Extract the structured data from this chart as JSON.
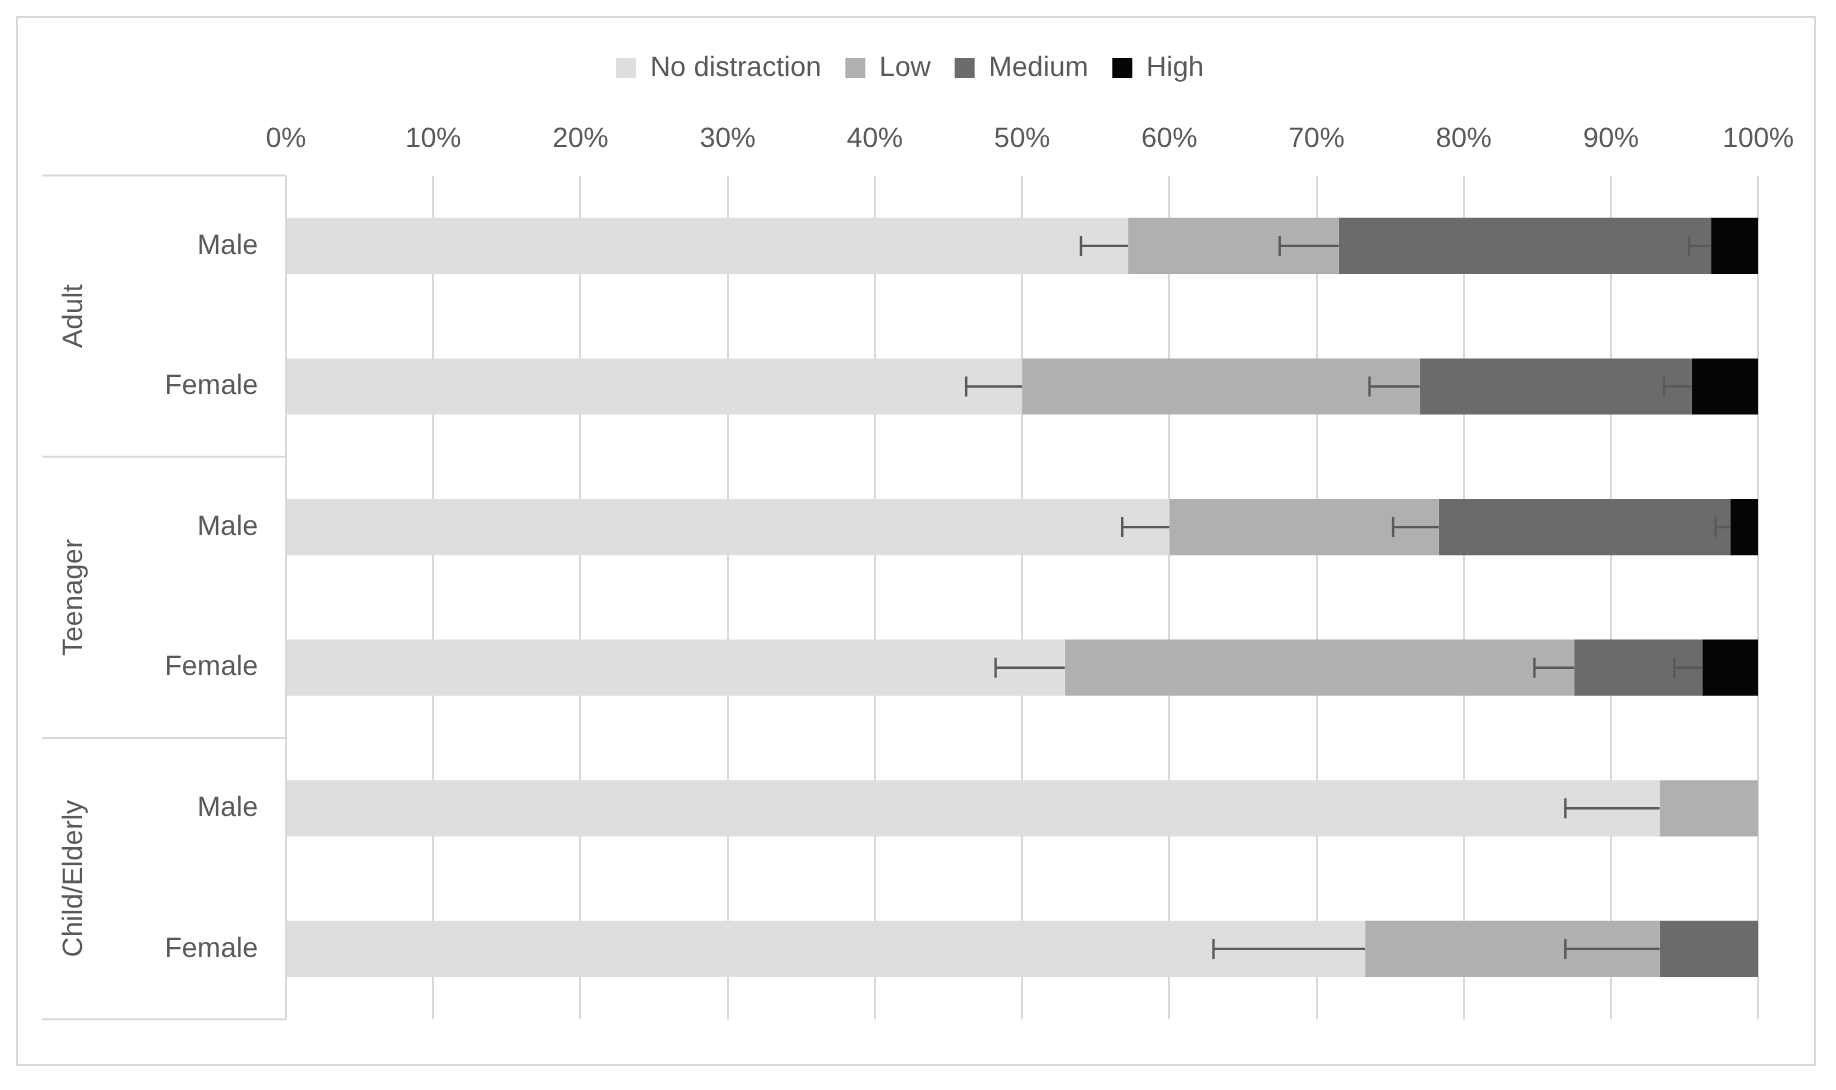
{
  "chart_data": {
    "type": "bar",
    "orientation": "horizontal",
    "stacked": true,
    "legend": "top",
    "grid": "x",
    "categories": [
      "Male",
      "Female",
      "Male",
      "Female",
      "Male",
      "Female"
    ],
    "annotations": [
      "Adult",
      "Teenager",
      "Child/Elderly"
    ],
    "xlim": [
      0,
      100
    ],
    "xticks": [
      {
        "value": 0,
        "label": "0%"
      },
      {
        "value": 10,
        "label": "10%"
      },
      {
        "value": 20,
        "label": "20%"
      },
      {
        "value": 30,
        "label": "30%"
      },
      {
        "value": 40,
        "label": "40%"
      },
      {
        "value": 50,
        "label": "50%"
      },
      {
        "value": 60,
        "label": "60%"
      },
      {
        "value": 70,
        "label": "70%"
      },
      {
        "value": 80,
        "label": "80%"
      },
      {
        "value": 90,
        "label": "90%"
      },
      {
        "value": 100,
        "label": "100%"
      }
    ],
    "series": [
      {
        "name": "No distraction",
        "color": "#dedede",
        "values": [
          57.2,
          50.0,
          60.0,
          52.9,
          93.3,
          73.3
        ],
        "errors": [
          [
            54.0,
            57.2
          ],
          [
            46.2,
            50.0
          ],
          [
            56.8,
            60.0
          ],
          [
            48.2,
            52.9
          ],
          [
            86.9,
            93.3
          ],
          [
            63.0,
            73.3
          ]
        ]
      },
      {
        "name": "Low",
        "color": "#b0b0b0",
        "values": [
          14.3,
          27.0,
          18.3,
          34.6,
          6.7,
          20.0
        ],
        "errors": [
          [
            67.5,
            71.5
          ],
          [
            73.6,
            77.0
          ],
          [
            75.2,
            78.3
          ],
          [
            84.8,
            87.5
          ],
          null,
          [
            86.9,
            93.3
          ]
        ]
      },
      {
        "name": "Medium",
        "color": "#6b6b6b",
        "values": [
          25.3,
          18.5,
          19.8,
          8.7,
          0,
          6.7
        ],
        "errors": [
          [
            95.3,
            96.8
          ],
          [
            93.6,
            95.5
          ],
          [
            97.1,
            98.1
          ],
          [
            94.3,
            96.2
          ],
          null,
          null
        ]
      },
      {
        "name": "High",
        "color": "#050505",
        "values": [
          3.2,
          4.5,
          1.9,
          3.8,
          0,
          0
        ]
      }
    ]
  }
}
